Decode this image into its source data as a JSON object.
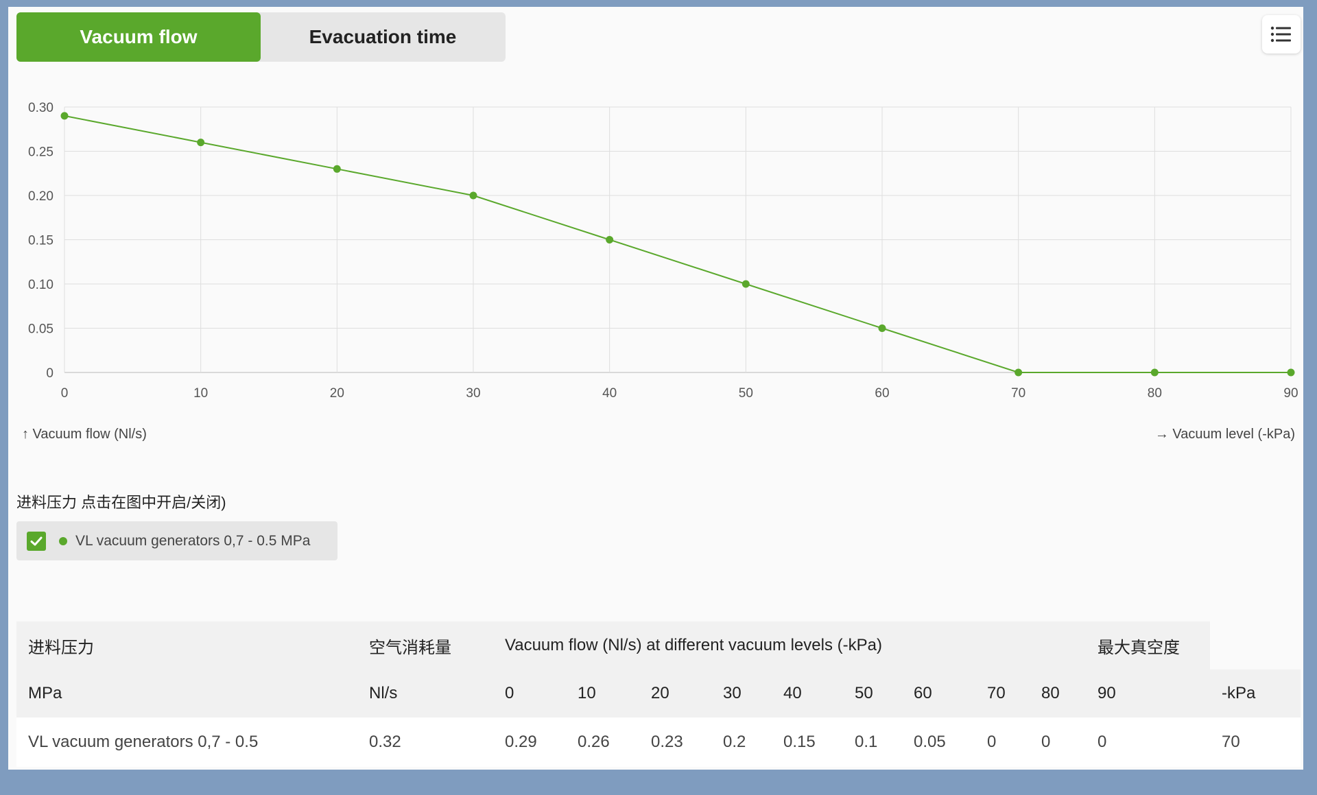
{
  "tabs": [
    {
      "label": "Vacuum flow",
      "active": true
    },
    {
      "label": "Evacuation time",
      "active": false
    }
  ],
  "menu_icon": "list-icon",
  "chart_data": {
    "type": "line",
    "x": [
      0,
      10,
      20,
      30,
      40,
      50,
      60,
      70,
      80,
      90
    ],
    "series": [
      {
        "name": "VL vacuum generators 0,7 - 0.5 MPa",
        "values": [
          0.29,
          0.26,
          0.23,
          0.2,
          0.15,
          0.1,
          0.05,
          0,
          0,
          0
        ],
        "color": "#5aa82c"
      }
    ],
    "xticks": [
      "0",
      "10",
      "20",
      "30",
      "40",
      "50",
      "60",
      "70",
      "80",
      "90"
    ],
    "yticks": [
      "0",
      "0.05",
      "0.10",
      "0.15",
      "0.20",
      "0.25",
      "0.30"
    ],
    "xlim": [
      0,
      90
    ],
    "ylim": [
      0,
      0.3
    ],
    "ylabel": "↑ Vacuum flow (Nl/s)",
    "xlabel": "→ Vacuum level (-kPa)",
    "grid": true
  },
  "legend": {
    "title": "进料压力 点击在图中开启/关闭)",
    "item_label": "VL vacuum generators 0,7 - 0.5 MPa",
    "checked": true
  },
  "table": {
    "header1": {
      "col1": "进料压力",
      "col2": "空气消耗量",
      "col3": "Vacuum flow (Nl/s) at different vacuum levels (-kPa)",
      "col4": "最大真空度"
    },
    "header2": [
      "MPa",
      "Nl/s",
      "0",
      "10",
      "20",
      "30",
      "40",
      "50",
      "60",
      "70",
      "80",
      "90",
      "-kPa"
    ],
    "rows": [
      [
        "VL vacuum generators 0,7 - 0.5",
        "0.32",
        "0.29",
        "0.26",
        "0.23",
        "0.2",
        "0.15",
        "0.1",
        "0.05",
        "0",
        "0",
        "0",
        "70"
      ]
    ]
  },
  "colors": {
    "accent": "#5aa82c",
    "frame": "#7f9cbf",
    "grid": "#dedede"
  }
}
